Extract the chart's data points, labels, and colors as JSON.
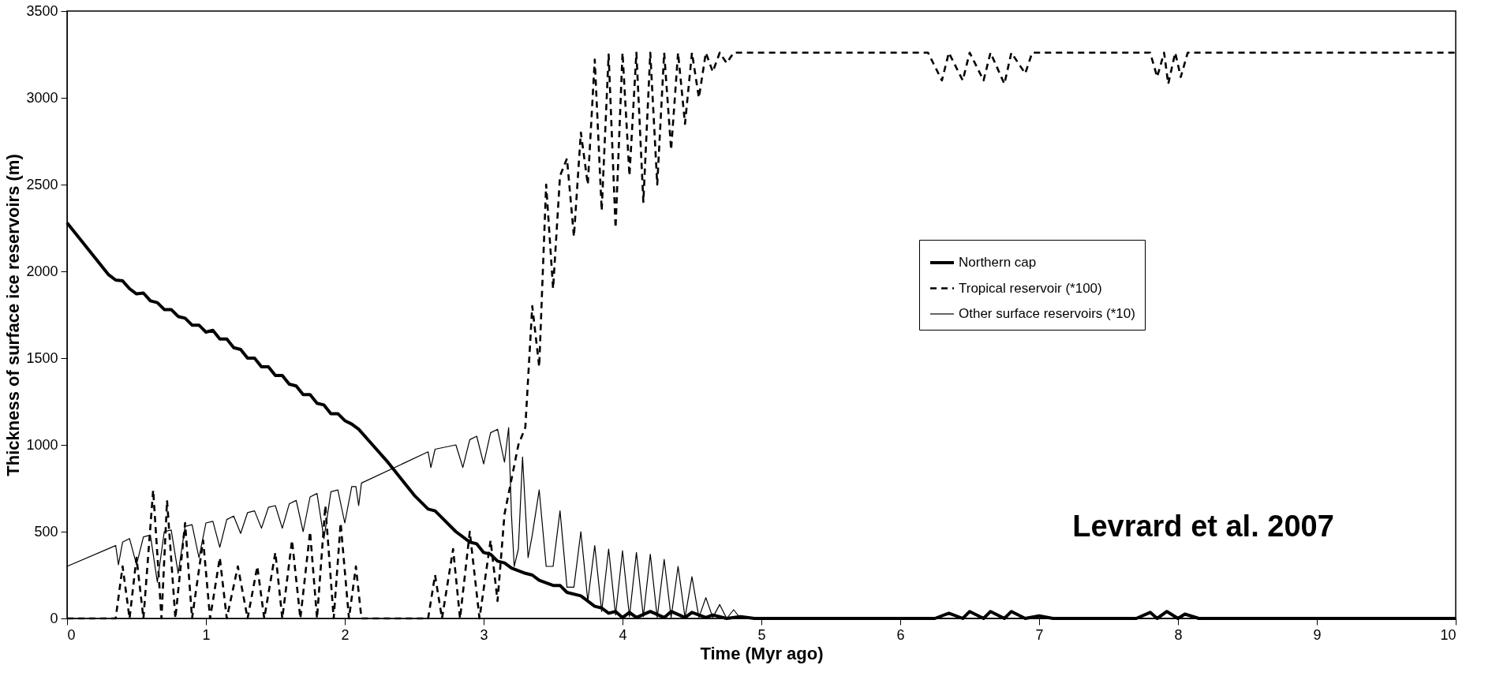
{
  "chart_data": {
    "type": "line",
    "xlabel": "Time (Myr ago)",
    "ylabel": "Thickness of surface ice reservoirs (m)",
    "xlim": [
      0,
      10
    ],
    "xticks": [
      0,
      1,
      2,
      3,
      4,
      5,
      6,
      7,
      8,
      9,
      10
    ],
    "ylim": [
      0,
      3500
    ],
    "yticks": [
      0,
      500,
      1000,
      1500,
      2000,
      2500,
      3000,
      3500
    ],
    "grid": false,
    "legend": "right",
    "marker": "none",
    "annotations": [
      "Levrard et al. 2007"
    ],
    "series": [
      {
        "name": "Northern cap",
        "color": "#000000",
        "line_style": "solid",
        "x": [
          0,
          0.1,
          0.2,
          0.3,
          0.35,
          0.4,
          0.45,
          0.5,
          0.55,
          0.6,
          0.65,
          0.7,
          0.75,
          0.8,
          0.85,
          0.9,
          0.95,
          1.0,
          1.05,
          1.1,
          1.15,
          1.2,
          1.25,
          1.3,
          1.35,
          1.4,
          1.45,
          1.5,
          1.55,
          1.6,
          1.65,
          1.7,
          1.75,
          1.8,
          1.85,
          1.9,
          1.95,
          2.0,
          2.05,
          2.1,
          2.2,
          2.3,
          2.4,
          2.5,
          2.6,
          2.65,
          2.7,
          2.8,
          2.9,
          2.95,
          3.0,
          3.05,
          3.1,
          3.15,
          3.2,
          3.3,
          3.35,
          3.4,
          3.5,
          3.55,
          3.6,
          3.7,
          3.8,
          3.85,
          3.9,
          3.95,
          4.0,
          4.05,
          4.1,
          4.2,
          4.3,
          4.35,
          4.45,
          4.5,
          4.6,
          4.65,
          4.75,
          4.85,
          4.95,
          5.5,
          6.0,
          6.25,
          6.35,
          6.45,
          6.5,
          6.6,
          6.65,
          6.75,
          6.8,
          6.9,
          7.0,
          7.1,
          7.7,
          7.8,
          7.85,
          7.92,
          8.0,
          8.05,
          8.15,
          9.0,
          10
        ],
        "values": [
          2280,
          2180,
          2080,
          1980,
          1950,
          1945,
          1900,
          1870,
          1875,
          1830,
          1820,
          1780,
          1780,
          1740,
          1730,
          1690,
          1690,
          1650,
          1660,
          1610,
          1610,
          1560,
          1550,
          1500,
          1500,
          1450,
          1450,
          1400,
          1400,
          1350,
          1340,
          1290,
          1290,
          1240,
          1230,
          1180,
          1180,
          1140,
          1120,
          1090,
          1000,
          910,
          810,
          710,
          630,
          620,
          580,
          500,
          440,
          430,
          380,
          370,
          330,
          320,
          290,
          260,
          250,
          220,
          190,
          190,
          150,
          130,
          70,
          60,
          30,
          40,
          5,
          35,
          5,
          40,
          5,
          40,
          5,
          35,
          5,
          20,
          0,
          10,
          0,
          0,
          0,
          0,
          30,
          0,
          40,
          0,
          40,
          0,
          40,
          0,
          15,
          0,
          0,
          35,
          0,
          40,
          0,
          25,
          0,
          0,
          0
        ]
      },
      {
        "name": "Tropical reservoir (*100)",
        "color": "#000000",
        "line_style": "dashed",
        "x": [
          0,
          0.35,
          0.4,
          0.45,
          0.5,
          0.55,
          0.62,
          0.68,
          0.72,
          0.78,
          0.85,
          0.9,
          0.98,
          1.03,
          1.1,
          1.15,
          1.23,
          1.3,
          1.37,
          1.42,
          1.5,
          1.55,
          1.62,
          1.68,
          1.75,
          1.8,
          1.86,
          1.92,
          1.97,
          2.03,
          2.08,
          2.12,
          2.6,
          2.65,
          2.7,
          2.78,
          2.83,
          2.9,
          2.97,
          3.05,
          3.1,
          3.15,
          3.2,
          3.25,
          3.3,
          3.35,
          3.4,
          3.45,
          3.5,
          3.55,
          3.6,
          3.65,
          3.7,
          3.75,
          3.8,
          3.85,
          3.9,
          3.95,
          4.0,
          4.05,
          4.1,
          4.15,
          4.2,
          4.25,
          4.3,
          4.35,
          4.4,
          4.45,
          4.5,
          4.55,
          4.6,
          4.65,
          4.7,
          4.75,
          4.8,
          6.2,
          6.3,
          6.35,
          6.45,
          6.5,
          6.6,
          6.65,
          6.75,
          6.8,
          6.9,
          6.95,
          7.8,
          7.85,
          7.9,
          7.93,
          7.98,
          8.02,
          8.07,
          10
        ],
        "values": [
          0,
          0,
          300,
          0,
          350,
          0,
          740,
          0,
          680,
          0,
          550,
          0,
          450,
          0,
          350,
          0,
          300,
          0,
          300,
          0,
          380,
          0,
          450,
          0,
          500,
          0,
          650,
          0,
          550,
          0,
          300,
          0,
          0,
          250,
          0,
          400,
          0,
          500,
          0,
          450,
          100,
          600,
          800,
          1000,
          1100,
          1800,
          1450,
          2500,
          1900,
          2550,
          2650,
          2200,
          2800,
          2500,
          3220,
          2350,
          3250,
          2250,
          3260,
          2550,
          3260,
          2400,
          3260,
          2500,
          3260,
          2700,
          3260,
          2850,
          3260,
          3000,
          3260,
          3150,
          3260,
          3200,
          3260,
          3260,
          3100,
          3260,
          3100,
          3260,
          3100,
          3260,
          3080,
          3260,
          3140,
          3260,
          3260,
          3120,
          3260,
          3080,
          3260,
          3120,
          3260,
          3260
        ]
      },
      {
        "name": "Other surface reservoirs (*10)",
        "color": "#000000",
        "line_style": "solid",
        "x": [
          0,
          0.35,
          0.37,
          0.4,
          0.45,
          0.5,
          0.55,
          0.6,
          0.65,
          0.7,
          0.75,
          0.8,
          0.85,
          0.9,
          0.95,
          1.0,
          1.05,
          1.1,
          1.15,
          1.2,
          1.25,
          1.3,
          1.35,
          1.4,
          1.45,
          1.5,
          1.55,
          1.6,
          1.65,
          1.7,
          1.75,
          1.8,
          1.85,
          1.9,
          1.95,
          2.0,
          2.05,
          2.08,
          2.1,
          2.12,
          2.6,
          2.62,
          2.65,
          2.8,
          2.85,
          2.9,
          2.95,
          3.0,
          3.05,
          3.1,
          3.15,
          3.18,
          3.2,
          3.22,
          3.25,
          3.28,
          3.32,
          3.35,
          3.4,
          3.45,
          3.5,
          3.55,
          3.6,
          3.65,
          3.7,
          3.75,
          3.8,
          3.85,
          3.9,
          3.95,
          4.0,
          4.05,
          4.1,
          4.15,
          4.2,
          4.25,
          4.3,
          4.35,
          4.4,
          4.45,
          4.5,
          4.55,
          4.6,
          4.65,
          4.7,
          4.75,
          4.8,
          4.85,
          10
        ],
        "values": [
          300,
          420,
          310,
          440,
          460,
          310,
          470,
          480,
          210,
          500,
          510,
          260,
          530,
          540,
          350,
          550,
          560,
          410,
          570,
          590,
          490,
          610,
          620,
          520,
          640,
          650,
          520,
          660,
          680,
          500,
          700,
          720,
          460,
          730,
          740,
          550,
          760,
          760,
          650,
          780,
          960,
          870,
          975,
          1000,
          870,
          1030,
          1050,
          890,
          1070,
          1090,
          900,
          1100,
          600,
          300,
          400,
          930,
          350,
          480,
          740,
          300,
          300,
          620,
          180,
          180,
          500,
          100,
          420,
          40,
          400,
          20,
          390,
          10,
          380,
          10,
          370,
          5,
          340,
          5,
          300,
          5,
          240,
          5,
          120,
          5,
          80,
          0,
          50,
          0,
          0
        ]
      }
    ]
  }
}
